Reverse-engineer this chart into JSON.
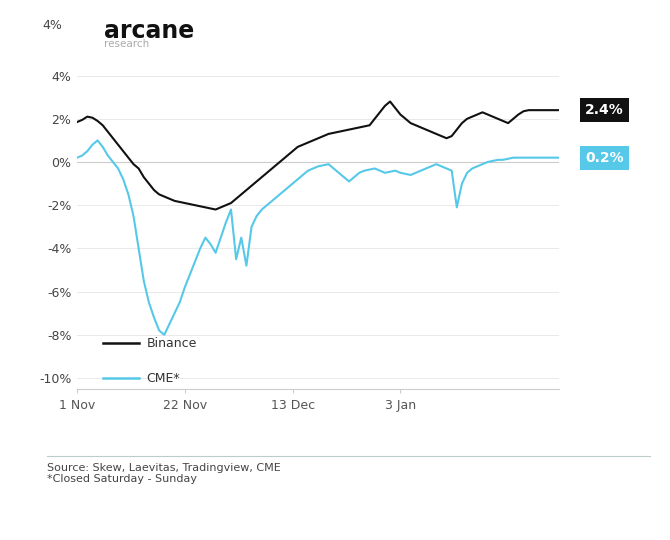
{
  "title": "arcane",
  "subtitle": "research",
  "xlim": [
    0,
    94
  ],
  "ylim": [
    -10.5,
    4.5
  ],
  "yticks": [
    -10,
    -8,
    -6,
    -4,
    -2,
    0,
    2,
    4
  ],
  "ytick_labels": [
    "-10%",
    "-8%",
    "-6%",
    "-4%",
    "-2%",
    "0%",
    "2%",
    "4%"
  ],
  "xtick_positions": [
    0,
    21,
    42,
    63
  ],
  "xtick_labels": [
    "1 Nov",
    "22 Nov",
    "13 Dec",
    "3 Jan"
  ],
  "binance_color": "#111111",
  "cme_color": "#56c8e8",
  "binance_end_label": "2.4%",
  "cme_end_label": "0.2%",
  "source_text": "Source: Skew, Laevitas, Tradingview, CME\n*Closed Saturday - Sunday",
  "background_color": "#ffffff",
  "binance_data": [
    1.85,
    1.95,
    2.1,
    2.05,
    1.9,
    1.7,
    1.4,
    1.1,
    0.8,
    0.5,
    0.2,
    -0.1,
    -0.3,
    -0.7,
    -1.0,
    -1.3,
    -1.5,
    -1.6,
    -1.7,
    -1.8,
    -1.85,
    -1.9,
    -1.95,
    -2.0,
    -2.05,
    -2.1,
    -2.15,
    -2.2,
    -2.1,
    -2.0,
    -1.9,
    -1.7,
    -1.5,
    -1.3,
    -1.1,
    -0.9,
    -0.7,
    -0.5,
    -0.3,
    -0.1,
    0.1,
    0.3,
    0.5,
    0.7,
    0.8,
    0.9,
    1.0,
    1.1,
    1.2,
    1.3,
    1.35,
    1.4,
    1.45,
    1.5,
    1.55,
    1.6,
    1.65,
    1.7,
    2.0,
    2.3,
    2.6,
    2.8,
    2.5,
    2.2,
    2.0,
    1.8,
    1.7,
    1.6,
    1.5,
    1.4,
    1.3,
    1.2,
    1.1,
    1.2,
    1.5,
    1.8,
    2.0,
    2.1,
    2.2,
    2.3,
    2.2,
    2.1,
    2.0,
    1.9,
    1.8,
    2.0,
    2.2,
    2.35,
    2.4,
    2.4,
    2.4,
    2.4,
    2.4,
    2.4,
    2.4
  ],
  "cme_data": [
    0.2,
    0.3,
    0.5,
    0.8,
    1.0,
    0.7,
    0.3,
    0.0,
    -0.3,
    -0.8,
    -1.5,
    -2.5,
    -4.0,
    -5.5,
    -6.5,
    -7.2,
    -7.8,
    -8.0,
    -7.5,
    -7.0,
    -6.5,
    -5.8,
    -5.2,
    -4.6,
    -4.0,
    -3.5,
    -3.8,
    -4.2,
    -3.5,
    -2.8,
    -2.2,
    -4.5,
    -3.5,
    -4.8,
    -3.0,
    -2.5,
    -2.2,
    -2.0,
    -1.8,
    -1.6,
    -1.4,
    -1.2,
    -1.0,
    -0.8,
    -0.6,
    -0.4,
    -0.3,
    -0.2,
    -0.15,
    -0.1,
    -0.3,
    -0.5,
    -0.7,
    -0.9,
    -0.7,
    -0.5,
    -0.4,
    -0.35,
    -0.3,
    -0.4,
    -0.5,
    -0.45,
    -0.4,
    -0.5,
    -0.55,
    -0.6,
    -0.5,
    -0.4,
    -0.3,
    -0.2,
    -0.1,
    -0.2,
    -0.3,
    -0.4,
    -2.1,
    -1.0,
    -0.5,
    -0.3,
    -0.2,
    -0.1,
    0.0,
    0.05,
    0.1,
    0.1,
    0.15,
    0.2,
    0.2,
    0.2,
    0.2,
    0.2,
    0.2,
    0.2,
    0.2,
    0.2,
    0.2
  ]
}
